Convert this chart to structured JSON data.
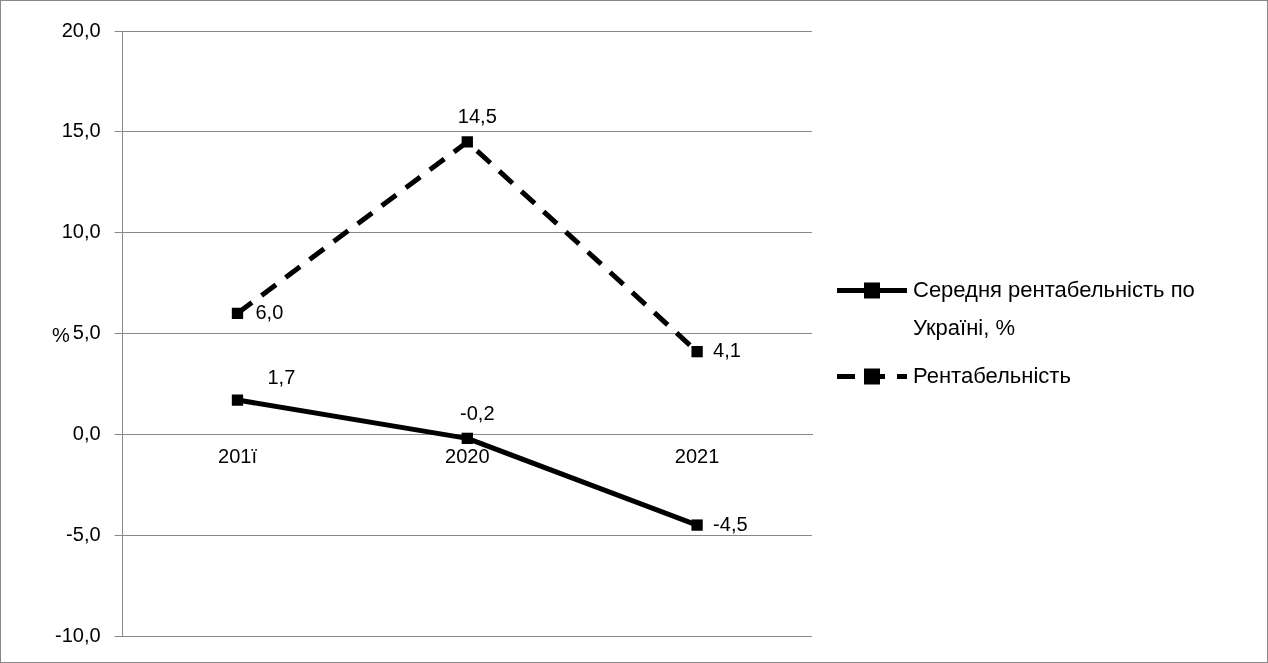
{
  "chart_data": {
    "type": "line",
    "ylabel": "%",
    "categories": [
      "201ї",
      "2020",
      "2021"
    ],
    "series": [
      {
        "name": "Середня рентабельність по Україні, %",
        "color": "#000000",
        "values": [
          1.7,
          -0.2,
          -4.5
        ],
        "value_labels": [
          "1,7",
          "-0,2",
          "-4,5"
        ],
        "line_style": "solid"
      },
      {
        "name": "Рентабельність",
        "color": "#000000",
        "values": [
          6.0,
          14.5,
          4.1
        ],
        "value_labels": [
          "6,0",
          "14,5",
          "4,1"
        ],
        "line_style": "dashed"
      }
    ],
    "ylim": [
      -10,
      20
    ],
    "yticks": [
      {
        "value": -10,
        "label": "-10,0"
      },
      {
        "value": -5,
        "label": "-5,0"
      },
      {
        "value": 0,
        "label": "0,0"
      },
      {
        "value": 5,
        "label": "5,0"
      },
      {
        "value": 10,
        "label": "10,0"
      },
      {
        "value": 15,
        "label": "15,0"
      },
      {
        "value": 20,
        "label": "20,0"
      }
    ],
    "grid": "y",
    "legend": "right",
    "marker": "square"
  }
}
